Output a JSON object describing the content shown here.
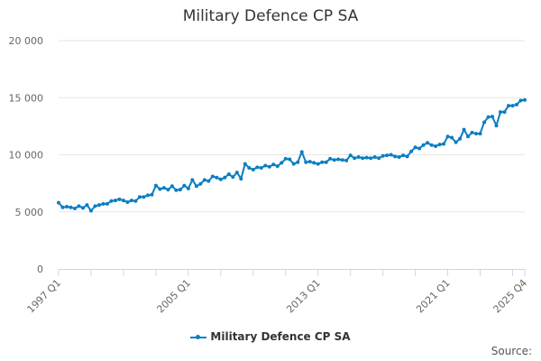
{
  "chart_data": {
    "type": "line",
    "title": "Military Defence CP SA",
    "xlabel": "",
    "ylabel": "",
    "x_start": "1997 Q1",
    "x_end": "2025 Q4",
    "x_tick_labels": [
      "1997 Q1",
      "2005 Q1",
      "2013 Q1",
      "2021 Q1",
      "2025 Q4"
    ],
    "y_tick_labels": [
      "0",
      "5 000",
      "10 000",
      "15 000",
      "20 000"
    ],
    "ylim": [
      0,
      20000
    ],
    "grid": true,
    "legend_position": "bottom",
    "color": "#0a7ec2",
    "series": [
      {
        "name": "Military Defence CP SA",
        "values": [
          5800,
          5400,
          5450,
          5400,
          5300,
          5500,
          5350,
          5600,
          5100,
          5500,
          5600,
          5700,
          5700,
          5950,
          6000,
          6100,
          6000,
          5850,
          6000,
          5950,
          6300,
          6300,
          6450,
          6500,
          7300,
          7000,
          7100,
          6950,
          7250,
          6900,
          6950,
          7300,
          7050,
          7800,
          7250,
          7450,
          7800,
          7700,
          8100,
          8000,
          7850,
          8000,
          8300,
          8050,
          8450,
          7900,
          9200,
          8850,
          8700,
          8900,
          8850,
          9050,
          8950,
          9150,
          9000,
          9300,
          9650,
          9600,
          9200,
          9350,
          10250,
          9350,
          9400,
          9300,
          9200,
          9350,
          9350,
          9650,
          9550,
          9600,
          9550,
          9500,
          9950,
          9700,
          9800,
          9700,
          9750,
          9700,
          9800,
          9700,
          9900,
          9950,
          10000,
          9850,
          9800,
          9950,
          9850,
          10300,
          10650,
          10550,
          10850,
          11050,
          10850,
          10750,
          10900,
          10950,
          11600,
          11500,
          11100,
          11400,
          12200,
          11600,
          11950,
          11850,
          11850,
          12850,
          13300,
          13350,
          12550,
          13750,
          13750,
          14300,
          14300,
          14400,
          14750,
          14800
        ]
      }
    ]
  },
  "source_label": "Source:"
}
